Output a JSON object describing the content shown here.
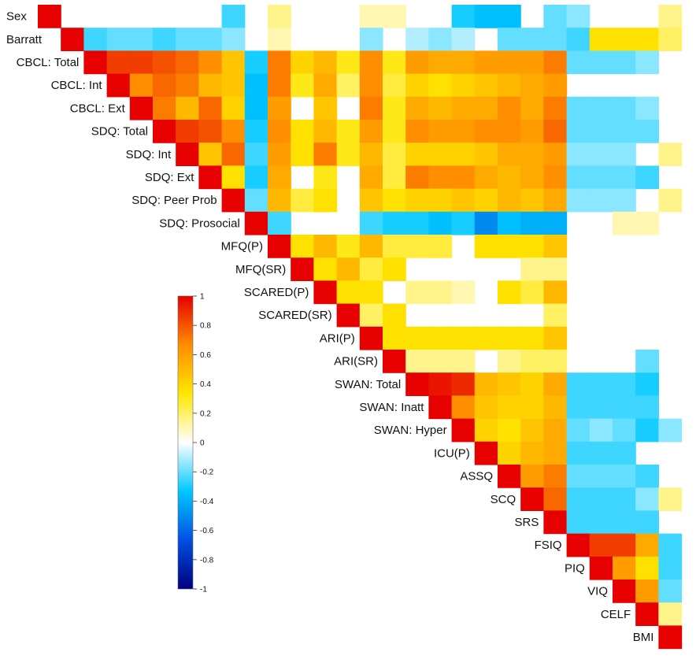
{
  "chart_data": {
    "type": "heatmap",
    "title": "",
    "variables": [
      "Sex",
      "Barratt",
      "CBCL: Total",
      "CBCL: Int",
      "CBCL: Ext",
      "SDQ: Total",
      "SDQ: Int",
      "SDQ: Ext",
      "SDQ: Peer Prob",
      "SDQ: Prosocial",
      "MFQ(P)",
      "MFQ(SR)",
      "SCARED(P)",
      "SCARED(SR)",
      "ARI(P)",
      "ARI(SR)",
      "SWAN: Total",
      "SWAN: Inatt",
      "SWAN: Hyper",
      "ICU(P)",
      "ASSQ",
      "SCQ",
      "SRS",
      "FSIQ",
      "PIQ",
      "VIQ",
      "CELF",
      "BMI"
    ],
    "layout": "upper-triangle",
    "colorbar": {
      "min": -1,
      "max": 1,
      "ticks": [
        "1",
        "0.8",
        "0.6",
        "0.4",
        "0.2",
        "0",
        "-0.2",
        "-0.4",
        "-0.6",
        "-0.8",
        "-1"
      ],
      "colors": [
        "#000080",
        "#0050e0",
        "#00c8ff",
        "#ffffff",
        "#ffe600",
        "#ff8c00",
        "#e60000"
      ]
    },
    "matrix": [
      [
        1,
        0,
        0,
        0,
        0,
        0,
        0,
        0,
        -0.25,
        0,
        0.15,
        0,
        0,
        0,
        0.1,
        0.1,
        0,
        0,
        -0.3,
        -0.35,
        -0.35,
        0,
        -0.2,
        -0.15,
        0,
        0,
        0,
        0.15
      ],
      [
        0,
        1,
        -0.25,
        -0.2,
        -0.2,
        -0.25,
        -0.2,
        -0.2,
        -0.15,
        0,
        0.1,
        0,
        0,
        0,
        -0.15,
        0,
        -0.1,
        -0.15,
        -0.1,
        0,
        -0.2,
        -0.2,
        -0.2,
        -0.25,
        0.35,
        0.35,
        0.35,
        0.2
      ],
      [
        0,
        0,
        1,
        0.85,
        0.85,
        0.8,
        0.75,
        0.65,
        0.45,
        -0.3,
        0.7,
        0.4,
        0.5,
        0.3,
        0.65,
        0.3,
        0.6,
        0.55,
        0.55,
        0.6,
        0.6,
        0.6,
        0.7,
        -0.2,
        -0.2,
        -0.2,
        -0.15,
        0
      ],
      [
        0,
        0,
        0,
        1,
        0.65,
        0.75,
        0.7,
        0.5,
        0.45,
        -0.35,
        0.7,
        0.3,
        0.55,
        0.2,
        0.65,
        0.25,
        0.4,
        0.35,
        0.4,
        0.45,
        0.5,
        0.55,
        0.6,
        0,
        0,
        0,
        0,
        0
      ],
      [
        0,
        0,
        0,
        0,
        1,
        0.7,
        0.5,
        0.75,
        0.4,
        -0.35,
        0.6,
        0,
        0.45,
        0,
        0.7,
        0.3,
        0.55,
        0.5,
        0.55,
        0.55,
        0.65,
        0.55,
        0.7,
        -0.2,
        -0.2,
        -0.2,
        -0.15,
        0
      ],
      [
        0,
        0,
        0,
        0,
        0,
        1,
        0.85,
        0.8,
        0.65,
        -0.3,
        0.65,
        0.35,
        0.5,
        0.3,
        0.6,
        0.3,
        0.65,
        0.6,
        0.6,
        0.65,
        0.65,
        0.6,
        0.75,
        -0.2,
        -0.2,
        -0.2,
        -0.2,
        0
      ],
      [
        0,
        0,
        0,
        0,
        0,
        0,
        1,
        0.45,
        0.75,
        -0.25,
        0.6,
        0.35,
        0.7,
        0.3,
        0.5,
        0.25,
        0.4,
        0.4,
        0.4,
        0.45,
        0.55,
        0.55,
        0.6,
        -0.15,
        -0.15,
        -0.15,
        0,
        0.15
      ],
      [
        0,
        0,
        0,
        0,
        0,
        0,
        0,
        1,
        0.35,
        -0.3,
        0.55,
        0,
        0.3,
        0,
        0.55,
        0.25,
        0.7,
        0.65,
        0.65,
        0.55,
        0.5,
        0.55,
        0.65,
        -0.2,
        -0.2,
        -0.2,
        -0.25,
        0
      ],
      [
        0,
        0,
        0,
        0,
        0,
        0,
        0,
        0,
        1,
        -0.2,
        0.5,
        0.25,
        0.35,
        0,
        0.45,
        0.35,
        0.4,
        0.4,
        0.45,
        0.4,
        0.5,
        0.45,
        0.55,
        -0.15,
        -0.15,
        -0.15,
        0,
        0.15
      ],
      [
        0,
        0,
        0,
        0,
        0,
        0,
        0,
        0,
        0,
        1,
        -0.25,
        0,
        0,
        0,
        -0.25,
        -0.3,
        -0.3,
        -0.35,
        -0.3,
        -0.5,
        -0.35,
        -0.4,
        -0.4,
        0,
        0,
        0.1,
        0.1,
        0
      ],
      [
        0,
        0,
        0,
        0,
        0,
        0,
        0,
        0,
        0,
        0,
        1,
        0.35,
        0.5,
        0.3,
        0.5,
        0.25,
        0.25,
        0.25,
        0,
        0.35,
        0.35,
        0.35,
        0.45,
        0,
        0,
        0,
        0,
        0
      ],
      [
        0,
        0,
        0,
        0,
        0,
        0,
        0,
        0,
        0,
        0,
        0,
        1,
        0.35,
        0.5,
        0.25,
        0.35,
        0,
        0,
        0,
        0,
        0,
        0.15,
        0.15,
        0,
        0,
        0,
        0,
        0
      ],
      [
        0,
        0,
        0,
        0,
        0,
        0,
        0,
        0,
        0,
        0,
        0,
        0,
        1,
        0.35,
        0.35,
        0,
        0.15,
        0.15,
        0.1,
        0,
        0.35,
        0.25,
        0.5,
        0,
        0,
        0,
        0,
        0
      ],
      [
        0,
        0,
        0,
        0,
        0,
        0,
        0,
        0,
        0,
        0,
        0,
        0,
        0,
        1,
        0.2,
        0.35,
        0,
        0,
        0,
        0,
        0,
        0,
        0.2,
        0,
        0,
        0,
        0,
        0
      ],
      [
        0,
        0,
        0,
        0,
        0,
        0,
        0,
        0,
        0,
        0,
        0,
        0,
        0,
        0,
        1,
        0.35,
        0.35,
        0.35,
        0.35,
        0.35,
        0.35,
        0.35,
        0.45,
        0,
        0,
        0,
        0,
        0
      ],
      [
        0,
        0,
        0,
        0,
        0,
        0,
        0,
        0,
        0,
        0,
        0,
        0,
        0,
        0,
        0,
        1,
        0.15,
        0.15,
        0.15,
        0,
        0.15,
        0.2,
        0.2,
        0,
        0,
        0,
        -0.2,
        0
      ],
      [
        0,
        0,
        0,
        0,
        0,
        0,
        0,
        0,
        0,
        0,
        0,
        0,
        0,
        0,
        0,
        0,
        1,
        0.95,
        0.9,
        0.5,
        0.45,
        0.4,
        0.55,
        -0.25,
        -0.25,
        -0.25,
        -0.3,
        0
      ],
      [
        0,
        0,
        0,
        0,
        0,
        0,
        0,
        0,
        0,
        0,
        0,
        0,
        0,
        0,
        0,
        0,
        0,
        1,
        0.65,
        0.45,
        0.4,
        0.4,
        0.5,
        -0.25,
        -0.25,
        -0.25,
        -0.25,
        0
      ],
      [
        0,
        0,
        0,
        0,
        0,
        0,
        0,
        0,
        0,
        0,
        0,
        0,
        0,
        0,
        0,
        0,
        0,
        0,
        1,
        0.4,
        0.35,
        0.45,
        0.55,
        -0.2,
        -0.15,
        -0.2,
        -0.3,
        -0.15
      ],
      [
        0,
        0,
        0,
        0,
        0,
        0,
        0,
        0,
        0,
        0,
        0,
        0,
        0,
        0,
        0,
        0,
        0,
        0,
        0,
        1,
        0.4,
        0.5,
        0.55,
        -0.25,
        -0.25,
        -0.25,
        0,
        0
      ],
      [
        0,
        0,
        0,
        0,
        0,
        0,
        0,
        0,
        0,
        0,
        0,
        0,
        0,
        0,
        0,
        0,
        0,
        0,
        0,
        0,
        1,
        0.6,
        0.7,
        -0.2,
        -0.2,
        -0.2,
        -0.25,
        0
      ],
      [
        0,
        0,
        0,
        0,
        0,
        0,
        0,
        0,
        0,
        0,
        0,
        0,
        0,
        0,
        0,
        0,
        0,
        0,
        0,
        0,
        0,
        1,
        0.75,
        -0.25,
        -0.25,
        -0.25,
        -0.15,
        0.15
      ],
      [
        0,
        0,
        0,
        0,
        0,
        0,
        0,
        0,
        0,
        0,
        0,
        0,
        0,
        0,
        0,
        0,
        0,
        0,
        0,
        0,
        0,
        0,
        1,
        -0.25,
        -0.25,
        -0.25,
        -0.25,
        0
      ],
      [
        0,
        0,
        0,
        0,
        0,
        0,
        0,
        0,
        0,
        0,
        0,
        0,
        0,
        0,
        0,
        0,
        0,
        0,
        0,
        0,
        0,
        0,
        0,
        1,
        0.85,
        0.85,
        0.55,
        -0.25
      ],
      [
        0,
        0,
        0,
        0,
        0,
        0,
        0,
        0,
        0,
        0,
        0,
        0,
        0,
        0,
        0,
        0,
        0,
        0,
        0,
        0,
        0,
        0,
        0,
        0,
        1,
        0.6,
        0.35,
        -0.25
      ],
      [
        0,
        0,
        0,
        0,
        0,
        0,
        0,
        0,
        0,
        0,
        0,
        0,
        0,
        0,
        0,
        0,
        0,
        0,
        0,
        0,
        0,
        0,
        0,
        0,
        0,
        1,
        0.6,
        -0.2
      ],
      [
        0,
        0,
        0,
        0,
        0,
        0,
        0,
        0,
        0,
        0,
        0,
        0,
        0,
        0,
        0,
        0,
        0,
        0,
        0,
        0,
        0,
        0,
        0,
        0,
        0,
        0,
        1,
        0.15
      ],
      [
        0,
        0,
        0,
        0,
        0,
        0,
        0,
        0,
        0,
        0,
        0,
        0,
        0,
        0,
        0,
        0,
        0,
        0,
        0,
        0,
        0,
        0,
        0,
        0,
        0,
        0,
        0,
        1
      ]
    ]
  }
}
